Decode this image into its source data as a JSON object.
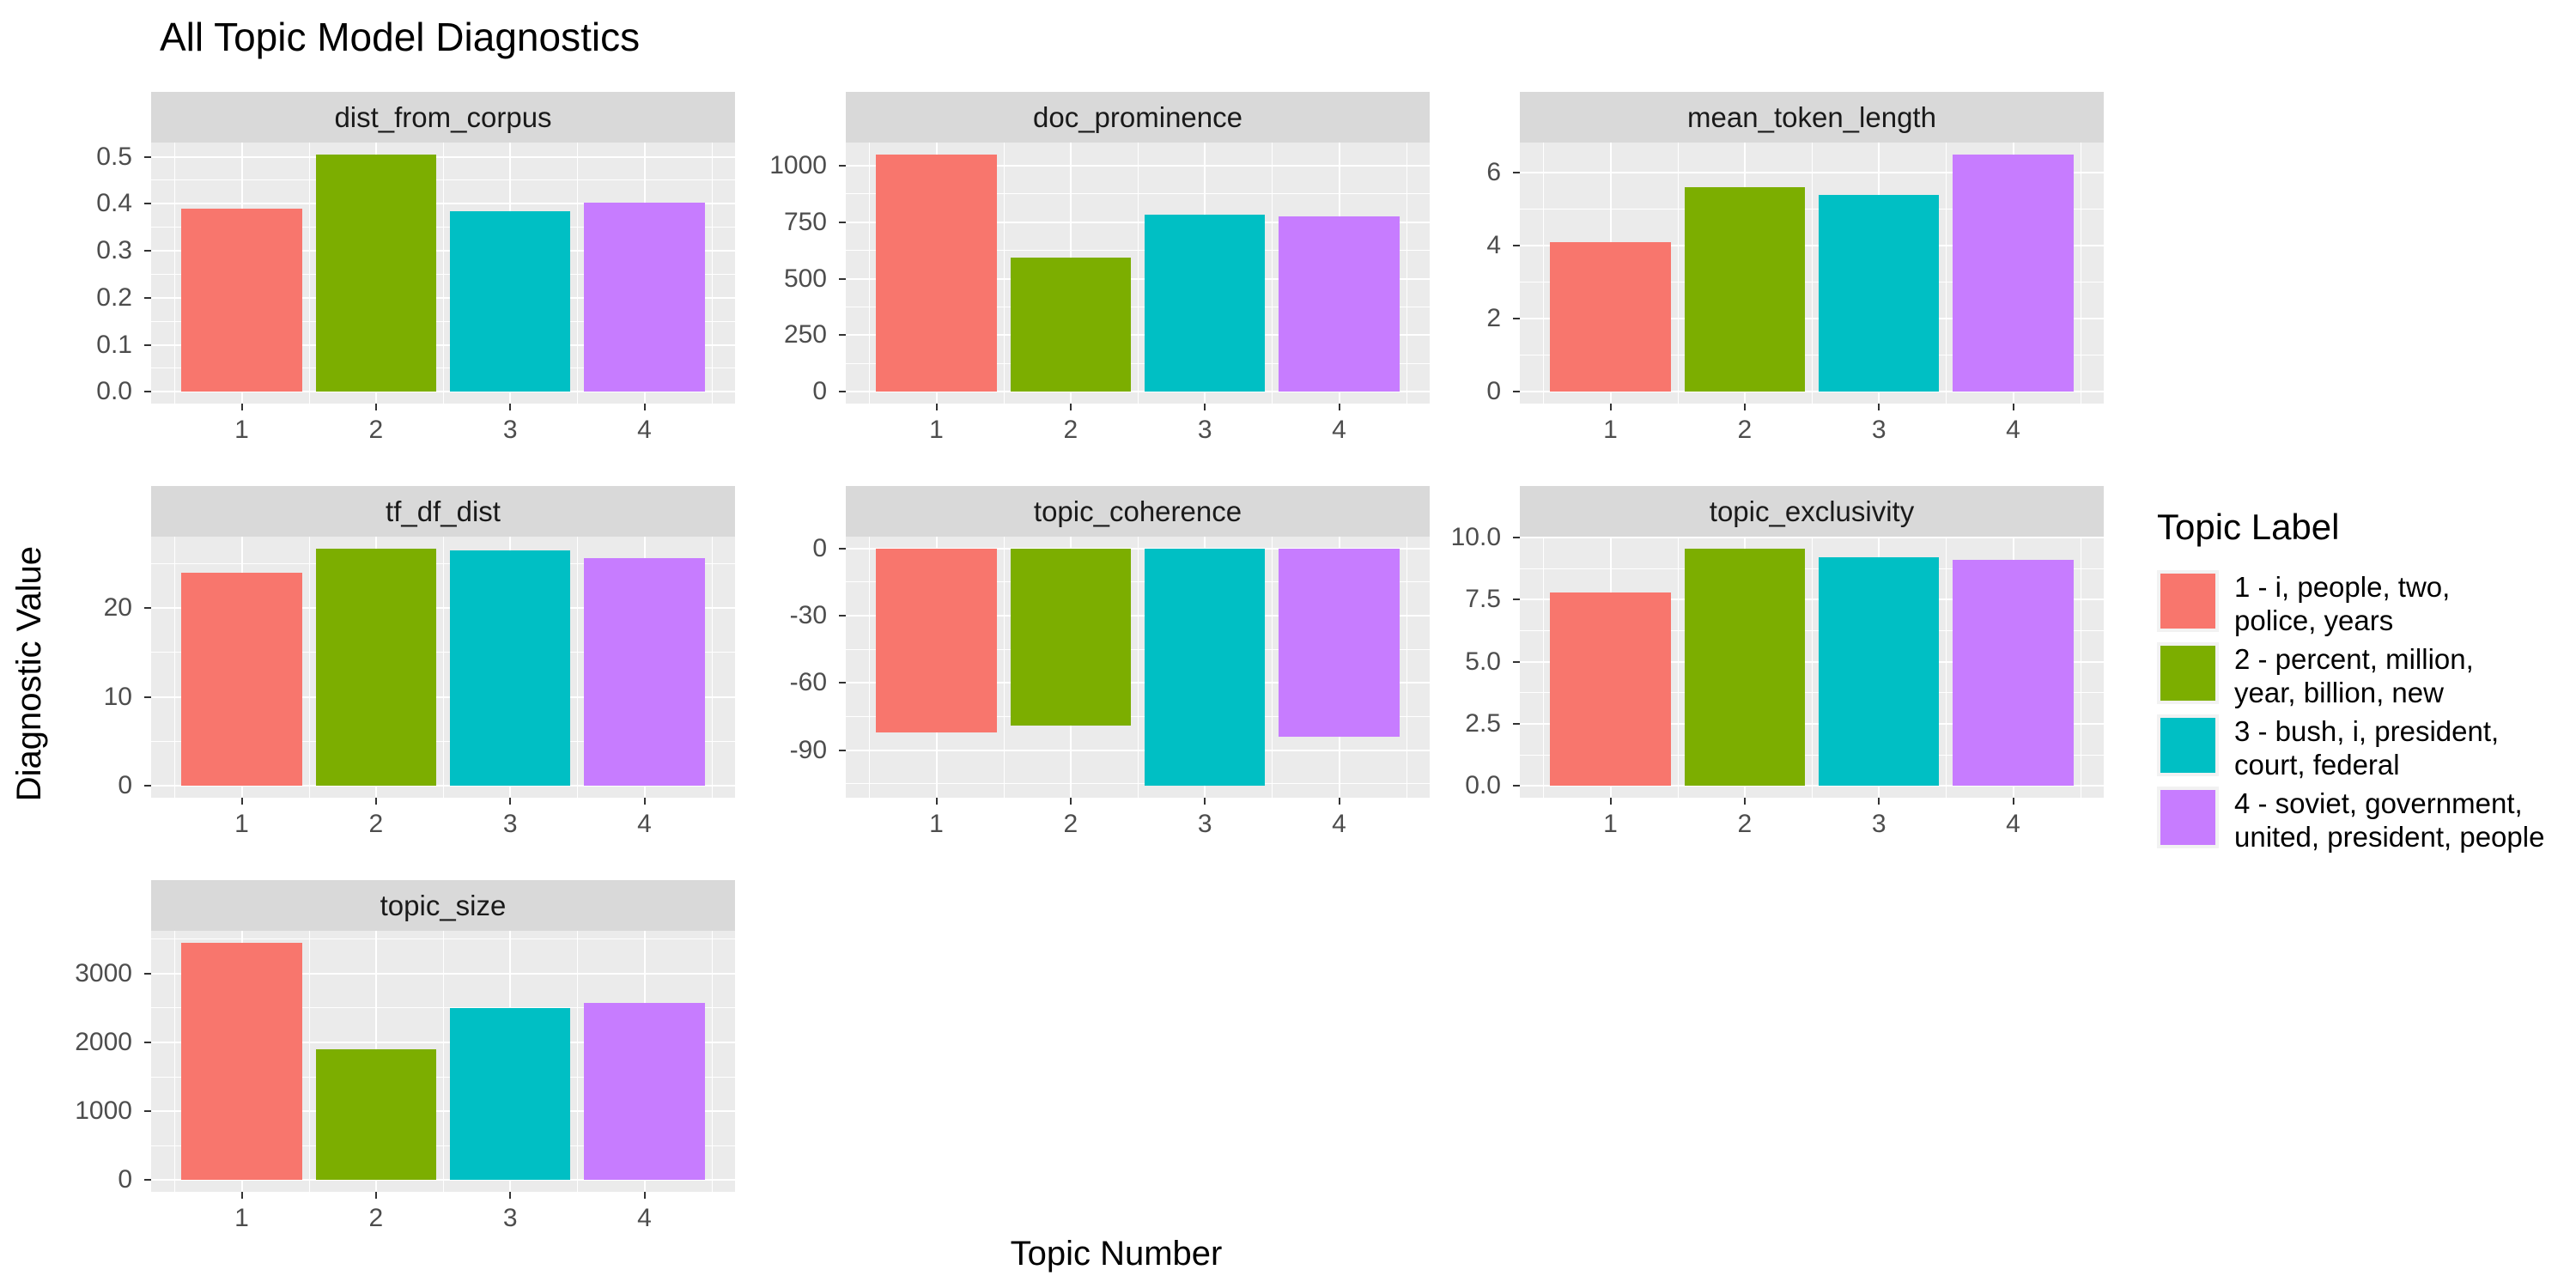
{
  "title": "All Topic Model Diagnostics",
  "axes": {
    "x_label": "Topic Number",
    "y_label": "Diagnostic Value"
  },
  "legend": {
    "title": "Topic Label",
    "items": [
      {
        "color": "#F8766D",
        "lines": [
          "1 - i, people, two,",
          "police, years"
        ]
      },
      {
        "color": "#7CAE00",
        "lines": [
          "2 - percent, million,",
          "year, billion, new"
        ]
      },
      {
        "color": "#00BFC4",
        "lines": [
          "3 - bush, i, president,",
          "court, federal"
        ]
      },
      {
        "color": "#C77CFF",
        "lines": [
          "4 - soviet, government,",
          "united, president, people"
        ]
      }
    ]
  },
  "colors": {
    "panel_bg": "#EBEBEB",
    "strip_bg": "#D9D9D9",
    "gridline": "#FFFFFF",
    "tick_text": "#4D4D4D",
    "axis_tick": "#333333",
    "legend_key_bg": "#F2F2F2"
  },
  "chart_data": {
    "type": "bar",
    "title": "All Topic Model Diagnostics",
    "xlabel": "Topic Number",
    "ylabel": "Diagnostic Value",
    "categories": [
      "1",
      "2",
      "3",
      "4"
    ],
    "palette": [
      "#F8766D",
      "#7CAE00",
      "#00BFC4",
      "#C77CFF"
    ],
    "series_labels": [
      "1 - i, people, two, police, years",
      "2 - percent, million, year, billion, new",
      "3 - bush, i, president, court, federal",
      "4 - soviet, government, united, president, people"
    ],
    "legend_title": "Topic Label",
    "legend_position": "right",
    "columns": 3,
    "grid_on": true,
    "facets": [
      {
        "name": "dist_from_corpus",
        "values": [
          0.39,
          0.505,
          0.385,
          0.402
        ],
        "ticks": [
          0,
          0.1,
          0.2,
          0.3,
          0.4,
          0.5
        ],
        "tick_labels": [
          "0.0",
          "0.1",
          "0.2",
          "0.3",
          "0.4",
          "0.5"
        ]
      },
      {
        "name": "doc_prominence",
        "values": [
          1050,
          595,
          785,
          775
        ],
        "ticks": [
          0,
          250,
          500,
          750,
          1000
        ],
        "tick_labels": [
          "0",
          "250",
          "500",
          "750",
          "1000"
        ]
      },
      {
        "name": "mean_token_length",
        "values": [
          4.1,
          5.6,
          5.4,
          6.5
        ],
        "ticks": [
          0,
          2,
          4,
          6
        ],
        "tick_labels": [
          "0",
          "2",
          "4",
          "6"
        ]
      },
      {
        "name": "tf_df_dist",
        "values": [
          24,
          26.7,
          26.5,
          25.6
        ],
        "ticks": [
          0,
          10,
          20
        ],
        "tick_labels": [
          "0",
          "10",
          "20"
        ]
      },
      {
        "name": "topic_coherence",
        "values": [
          -82,
          -79,
          -106,
          -84
        ],
        "ticks": [
          0,
          -30,
          -60,
          -90
        ],
        "tick_labels": [
          "0",
          "-30",
          "-60",
          "-90"
        ]
      },
      {
        "name": "topic_exclusivity",
        "values": [
          7.8,
          9.55,
          9.2,
          9.1
        ],
        "ticks": [
          0,
          2.5,
          5,
          7.5,
          10
        ],
        "tick_labels": [
          "0.0",
          "2.5",
          "5.0",
          "7.5",
          "10.0"
        ]
      },
      {
        "name": "topic_size",
        "values": [
          3450,
          1900,
          2500,
          2570
        ],
        "ticks": [
          0,
          1000,
          2000,
          3000
        ],
        "tick_labels": [
          "0",
          "1000",
          "2000",
          "3000"
        ]
      }
    ]
  }
}
